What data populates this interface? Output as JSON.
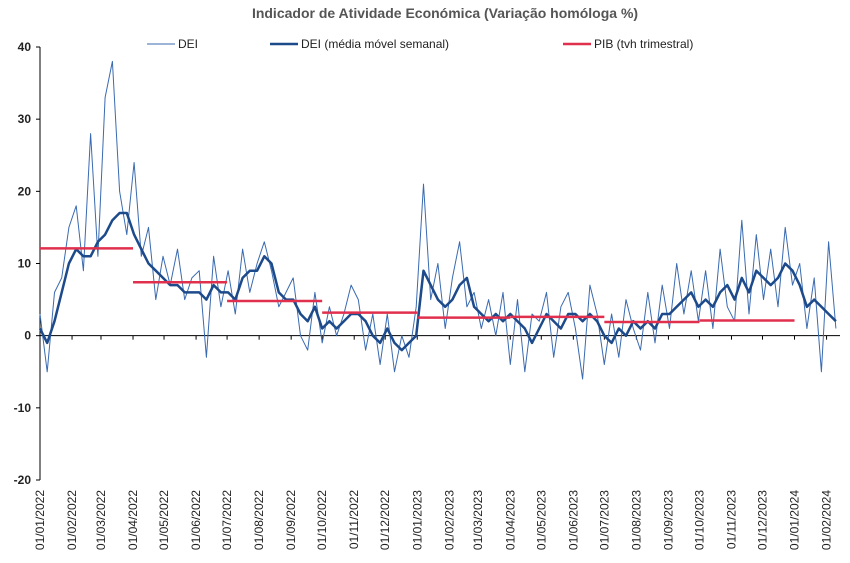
{
  "chart_data": {
    "type": "line",
    "title": "Indicador de Atividade Económica (Variação homóloga %)",
    "xlim": [
      "01/01/2022",
      "14/02/2024"
    ],
    "xticks": [
      "01/01/2022",
      "01/02/2022",
      "01/03/2022",
      "01/04/2022",
      "01/05/2022",
      "01/06/2022",
      "01/07/2022",
      "01/08/2022",
      "01/09/2022",
      "01/10/2022",
      "01/11/2022",
      "01/12/2022",
      "01/01/2023",
      "01/02/2023",
      "01/03/2023",
      "01/04/2023",
      "01/05/2023",
      "01/06/2023",
      "01/07/2023",
      "01/08/2023",
      "01/09/2023",
      "01/10/2023",
      "01/11/2023",
      "01/12/2023",
      "01/01/2024",
      "01/02/2024"
    ],
    "ylim": [
      -20,
      40
    ],
    "yticks": [
      -20,
      -10,
      0,
      10,
      20,
      30,
      40
    ],
    "x": [
      "01/01/2022",
      "08/01/2022",
      "15/01/2022",
      "22/01/2022",
      "29/01/2022",
      "05/02/2022",
      "12/02/2022",
      "19/02/2022",
      "26/02/2022",
      "05/03/2022",
      "12/03/2022",
      "19/03/2022",
      "26/03/2022",
      "02/04/2022",
      "09/04/2022",
      "16/04/2022",
      "23/04/2022",
      "30/04/2022",
      "07/05/2022",
      "14/05/2022",
      "21/05/2022",
      "28/05/2022",
      "04/06/2022",
      "11/06/2022",
      "18/06/2022",
      "25/06/2022",
      "02/07/2022",
      "09/07/2022",
      "16/07/2022",
      "23/07/2022",
      "30/07/2022",
      "06/08/2022",
      "13/08/2022",
      "20/08/2022",
      "27/08/2022",
      "03/09/2022",
      "10/09/2022",
      "17/09/2022",
      "24/09/2022",
      "01/10/2022",
      "08/10/2022",
      "15/10/2022",
      "22/10/2022",
      "29/10/2022",
      "05/11/2022",
      "12/11/2022",
      "19/11/2022",
      "26/11/2022",
      "03/12/2022",
      "10/12/2022",
      "17/12/2022",
      "24/12/2022",
      "31/12/2022",
      "07/01/2023",
      "14/01/2023",
      "21/01/2023",
      "28/01/2023",
      "04/02/2023",
      "11/02/2023",
      "18/02/2023",
      "25/02/2023",
      "04/03/2023",
      "11/03/2023",
      "18/03/2023",
      "25/03/2023",
      "01/04/2023",
      "08/04/2023",
      "15/04/2023",
      "22/04/2023",
      "29/04/2023",
      "06/05/2023",
      "13/05/2023",
      "20/05/2023",
      "27/05/2023",
      "03/06/2023",
      "10/06/2023",
      "17/06/2023",
      "24/06/2023",
      "01/07/2023",
      "08/07/2023",
      "15/07/2023",
      "22/07/2023",
      "29/07/2023",
      "05/08/2023",
      "12/08/2023",
      "19/08/2023",
      "26/08/2023",
      "02/09/2023",
      "09/09/2023",
      "16/09/2023",
      "23/09/2023",
      "30/09/2023",
      "07/10/2023",
      "14/10/2023",
      "21/10/2023",
      "28/10/2023",
      "04/11/2023",
      "11/11/2023",
      "18/11/2023",
      "25/11/2023",
      "02/12/2023",
      "09/12/2023",
      "16/12/2023",
      "23/12/2023",
      "30/12/2023",
      "06/01/2024",
      "13/01/2024",
      "20/01/2024",
      "27/01/2024",
      "03/02/2024",
      "10/02/2024"
    ],
    "series": [
      {
        "name": "DEI",
        "color": "#3a6ab0",
        "width": 1,
        "values": [
          3,
          -5,
          6,
          8,
          15,
          18,
          9,
          28,
          11,
          33,
          38,
          20,
          14,
          24,
          11,
          15,
          5,
          11,
          7,
          12,
          5,
          8,
          9,
          -3,
          11,
          4,
          9,
          3,
          12,
          6,
          10,
          13,
          9,
          4,
          6,
          8,
          0,
          -2,
          6,
          -1,
          4,
          0,
          3,
          7,
          5,
          -2,
          3,
          -4,
          3,
          -5,
          0,
          -3,
          4,
          21,
          5,
          10,
          1,
          8,
          13,
          4,
          6,
          1,
          5,
          0,
          6,
          -4,
          5,
          -5,
          3,
          2,
          6,
          -3,
          4,
          6,
          1,
          -6,
          7,
          3,
          -4,
          3,
          -3,
          5,
          1,
          -2,
          6,
          -1,
          7,
          1,
          10,
          3,
          9,
          2,
          9,
          1,
          12,
          4,
          2,
          16,
          3,
          14,
          5,
          12,
          4,
          15,
          7,
          10,
          1,
          8,
          -5,
          13,
          1
        ]
      },
      {
        "name": "DEI (média móvel semanal)",
        "color": "#1c4a8a",
        "width": 2.5,
        "values": [
          1,
          -1,
          2,
          6,
          10,
          12,
          11,
          11,
          13,
          14,
          16,
          17,
          17,
          14,
          12,
          10,
          9,
          8,
          7,
          7,
          6,
          6,
          6,
          5,
          7,
          6,
          6,
          5,
          8,
          9,
          9,
          11,
          10,
          6,
          5,
          5,
          3,
          2,
          4,
          1,
          2,
          1,
          2,
          3,
          3,
          2,
          0,
          -1,
          1,
          -1,
          -2,
          -1,
          0,
          9,
          7,
          5,
          4,
          5,
          7,
          8,
          4,
          3,
          2,
          3,
          2,
          3,
          2,
          1,
          -1,
          1,
          3,
          2,
          1,
          3,
          3,
          2,
          3,
          2,
          0,
          -1,
          1,
          0,
          2,
          1,
          2,
          1,
          3,
          3,
          4,
          5,
          6,
          4,
          5,
          4,
          6,
          7,
          5,
          8,
          6,
          9,
          8,
          7,
          8,
          10,
          9,
          7,
          4,
          5,
          4,
          3,
          2
        ]
      }
    ],
    "pib": {
      "name": "PIB (tvh trimestral)",
      "color": "#e0304e",
      "segments": [
        {
          "start": "01/01/2022",
          "end": "01/04/2022",
          "value": 12.1
        },
        {
          "start": "01/04/2022",
          "end": "01/07/2022",
          "value": 7.4
        },
        {
          "start": "01/07/2022",
          "end": "01/10/2022",
          "value": 4.8
        },
        {
          "start": "01/10/2022",
          "end": "01/01/2023",
          "value": 3.2
        },
        {
          "start": "01/01/2023",
          "end": "01/04/2023",
          "value": 2.5
        },
        {
          "start": "01/04/2023",
          "end": "01/07/2023",
          "value": 2.6
        },
        {
          "start": "01/07/2023",
          "end": "01/10/2023",
          "value": 1.9
        },
        {
          "start": "01/10/2023",
          "end": "01/01/2024",
          "value": 2.1
        }
      ]
    }
  }
}
